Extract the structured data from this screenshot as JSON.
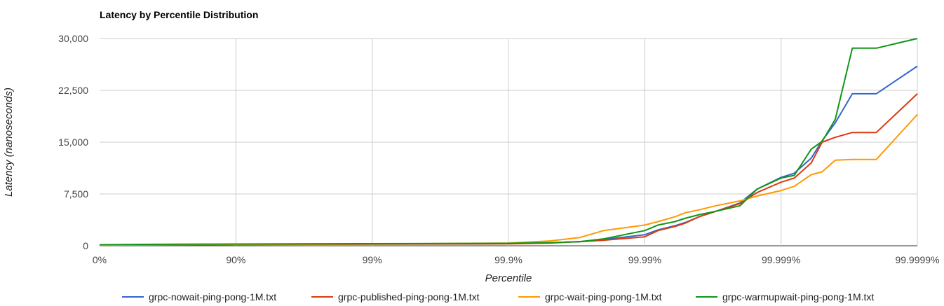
{
  "chart_data": {
    "type": "line",
    "title": "Latency by Percentile Distribution",
    "xlabel": "Percentile",
    "ylabel": "Latency (nanoseconds)",
    "x_scale": "log(1/(1-p))",
    "x_ticks": [
      "0%",
      "90%",
      "99%",
      "99.9%",
      "99.99%",
      "99.999%",
      "99.9999%"
    ],
    "y_ticks": [
      "0",
      "7,500",
      "15,000",
      "22,500",
      "30,000"
    ],
    "ylim": [
      0,
      30000
    ],
    "grid": true,
    "legend_position": "bottom",
    "x": [
      "0%",
      "50%",
      "90%",
      "99%",
      "99.9%",
      "99.95%",
      "99.97%",
      "99.98%",
      "99.99%",
      "99.992%",
      "99.994%",
      "99.995%",
      "99.996%",
      "99.997%",
      "99.998%",
      "99.9985%",
      "99.999%",
      "99.9992%",
      "99.9994%",
      "99.9995%",
      "99.9996%",
      "99.9997%",
      "99.9998%",
      "99.9999%"
    ],
    "series": [
      {
        "name": "grpc-nowait-ping-pong-1M.txt",
        "color": "#3366cc",
        "values": [
          100,
          150,
          200,
          220,
          300,
          450,
          600,
          900,
          1600,
          2300,
          2900,
          3400,
          4200,
          5000,
          6200,
          8200,
          9900,
          10500,
          12700,
          15200,
          17800,
          22000,
          22000,
          26000
        ]
      },
      {
        "name": "grpc-published-ping-pong-1M.txt",
        "color": "#dc3912",
        "values": [
          80,
          120,
          180,
          220,
          280,
          400,
          600,
          800,
          1300,
          2200,
          2800,
          3300,
          4200,
          5000,
          6100,
          7700,
          9200,
          9800,
          12000,
          15000,
          15700,
          16400,
          16400,
          22000
        ]
      },
      {
        "name": "grpc-wait-ping-pong-1M.txt",
        "color": "#ff9900",
        "values": [
          80,
          120,
          200,
          250,
          400,
          700,
          1200,
          2200,
          3000,
          3500,
          4200,
          4800,
          5200,
          5800,
          6500,
          7200,
          8000,
          8600,
          10300,
          10700,
          12400,
          12500,
          12500,
          19000
        ]
      },
      {
        "name": "grpc-warmupwait-ping-pong-1M.txt",
        "color": "#109618",
        "values": [
          150,
          200,
          250,
          300,
          350,
          450,
          600,
          1000,
          2200,
          3000,
          3500,
          4000,
          4500,
          5000,
          5800,
          8200,
          9800,
          10200,
          14000,
          15100,
          18300,
          28600,
          28600,
          30000
        ]
      }
    ]
  }
}
